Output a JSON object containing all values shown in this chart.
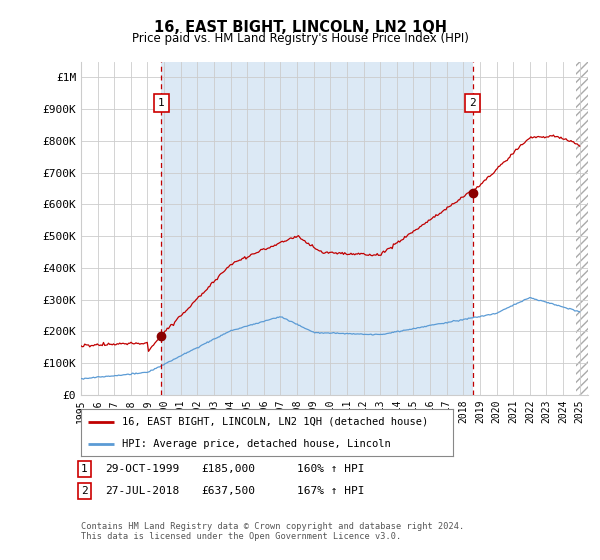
{
  "title": "16, EAST BIGHT, LINCOLN, LN2 1QH",
  "subtitle": "Price paid vs. HM Land Registry's House Price Index (HPI)",
  "xlim_start": 1995.0,
  "xlim_end": 2025.5,
  "ylim_min": 0,
  "ylim_max": 1050000,
  "yticks": [
    0,
    100000,
    200000,
    300000,
    400000,
    500000,
    600000,
    700000,
    800000,
    900000,
    1000000
  ],
  "ytick_labels": [
    "£0",
    "£100K",
    "£200K",
    "£300K",
    "£400K",
    "£500K",
    "£600K",
    "£700K",
    "£800K",
    "£900K",
    "£1M"
  ],
  "sale1_x": 1999.83,
  "sale1_y": 185000,
  "sale2_x": 2018.56,
  "sale2_y": 637500,
  "hpi_line_color": "#5b9bd5",
  "price_line_color": "#c00000",
  "marker_color": "#8b0000",
  "dashed_line_color": "#c00000",
  "grid_color": "#cccccc",
  "shaded_color": "#dce9f5",
  "background_color": "#ffffff",
  "legend_label_red": "16, EAST BIGHT, LINCOLN, LN2 1QH (detached house)",
  "legend_label_blue": "HPI: Average price, detached house, Lincoln",
  "sale1_date": "29-OCT-1999",
  "sale1_price": "£185,000",
  "sale1_hpi": "160% ↑ HPI",
  "sale2_date": "27-JUL-2018",
  "sale2_price": "£637,500",
  "sale2_hpi": "167% ↑ HPI",
  "footer": "Contains HM Land Registry data © Crown copyright and database right 2024.\nThis data is licensed under the Open Government Licence v3.0.",
  "xtick_years": [
    1995,
    1996,
    1997,
    1998,
    1999,
    2000,
    2001,
    2002,
    2003,
    2004,
    2005,
    2006,
    2007,
    2008,
    2009,
    2010,
    2011,
    2012,
    2013,
    2014,
    2015,
    2016,
    2017,
    2018,
    2019,
    2020,
    2021,
    2022,
    2023,
    2024,
    2025
  ]
}
